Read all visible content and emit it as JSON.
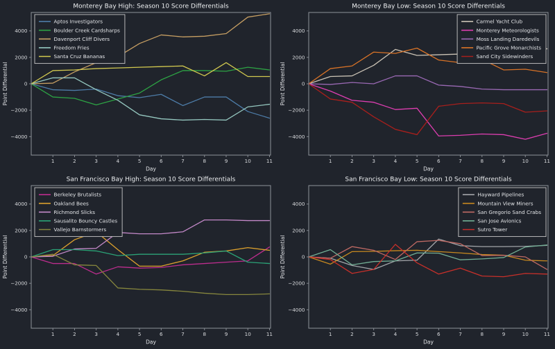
{
  "page": {
    "background": "#20242c",
    "spine_color": "#8e939a",
    "title_color": "#eceef0",
    "tick_label_color": "#d8dadd",
    "axis_label_color": "#e4e6e9",
    "legend_border_color": "#c9c9c9",
    "legend_fill": "#20242c"
  },
  "chart_data": [
    {
      "id": "monterey-bay-high",
      "type": "line",
      "title": "Monterey Bay High: Season 10 Score Differentials",
      "xlabel": "Day",
      "ylabel": "Point Differential",
      "x": [
        0,
        1,
        2,
        3,
        4,
        5,
        6,
        7,
        8,
        9,
        10,
        11
      ],
      "xticks": [
        1,
        2,
        3,
        4,
        5,
        6,
        7,
        8,
        9,
        10,
        11
      ],
      "yticks": [
        -4000,
        -2000,
        0,
        2000,
        4000
      ],
      "xlim": [
        0,
        11.05
      ],
      "ylim": [
        -5400,
        5400
      ],
      "grid": false,
      "legend_position": "top-left",
      "series": [
        {
          "name": "Aptos Investigators",
          "color": "#4d7ca8",
          "values": [
            0,
            -450,
            -500,
            -400,
            -900,
            -1050,
            -800,
            -1650,
            -1000,
            -1000,
            -2100,
            -2600
          ]
        },
        {
          "name": "Boulder Creek Cardsharps",
          "color": "#2da344",
          "values": [
            0,
            -1000,
            -1100,
            -1600,
            -1150,
            -700,
            300,
            1000,
            1000,
            950,
            1250,
            1050
          ]
        },
        {
          "name": "Davenport Cliff Divers",
          "color": "#c79f63",
          "values": [
            0,
            50,
            900,
            1600,
            2050,
            3050,
            3700,
            3550,
            3600,
            3800,
            5050,
            5300
          ]
        },
        {
          "name": "Freedom Fries",
          "color": "#95c8c0",
          "values": [
            0,
            450,
            450,
            -450,
            -1250,
            -2350,
            -2650,
            -2750,
            -2700,
            -2750,
            -1750,
            -1550
          ]
        },
        {
          "name": "Santa Cruz Bananas",
          "color": "#d2c94f",
          "values": [
            0,
            1000,
            1050,
            1150,
            1200,
            1250,
            1300,
            1350,
            600,
            1600,
            550,
            550
          ]
        }
      ]
    },
    {
      "id": "monterey-bay-low",
      "type": "line",
      "title": "Monterey Bay Low: Season 10 Score Differentials",
      "xlabel": "Day",
      "ylabel": "Point Differential",
      "x": [
        0,
        1,
        2,
        3,
        4,
        5,
        6,
        7,
        8,
        9,
        10,
        11
      ],
      "xticks": [
        1,
        2,
        3,
        4,
        5,
        6,
        7,
        8,
        9,
        10,
        11
      ],
      "yticks": [
        -4000,
        -2000,
        0,
        2000,
        4000
      ],
      "xlim": [
        0,
        11.05
      ],
      "ylim": [
        -5400,
        5400
      ],
      "grid": false,
      "legend_position": "top-right",
      "series": [
        {
          "name": "Carmel Yacht Club",
          "color": "#cbc3b5",
          "values": [
            0,
            550,
            600,
            1400,
            2600,
            2150,
            2200,
            2250,
            2300,
            2100,
            2500,
            2650
          ]
        },
        {
          "name": "Monterey Meteorologists",
          "color": "#de3eb1",
          "values": [
            0,
            -550,
            -1250,
            -1400,
            -1950,
            -1850,
            -3950,
            -3900,
            -3800,
            -3850,
            -4200,
            -3750
          ]
        },
        {
          "name": "Moss Landing Daredevils",
          "color": "#9a69b4",
          "values": [
            0,
            -50,
            100,
            0,
            600,
            600,
            -100,
            -200,
            -400,
            -450,
            -450,
            -450
          ]
        },
        {
          "name": "Pacific Grove Monarchists",
          "color": "#d97327",
          "values": [
            0,
            1150,
            1350,
            2400,
            2300,
            2700,
            1800,
            1600,
            1850,
            1050,
            1100,
            850
          ]
        },
        {
          "name": "Sand City Sidewinders",
          "color": "#a81f1c",
          "values": [
            0,
            -1150,
            -1400,
            -2500,
            -3450,
            -3850,
            -1700,
            -1500,
            -1450,
            -1500,
            -2150,
            -2050
          ]
        }
      ]
    },
    {
      "id": "san-francisco-bay-high",
      "type": "line",
      "title": "San Francisco Bay High: Season 10 Score Differentials",
      "xlabel": "Day",
      "ylabel": "Point Differential",
      "x": [
        0,
        1,
        2,
        3,
        4,
        5,
        6,
        7,
        8,
        9,
        10,
        11
      ],
      "xticks": [
        1,
        2,
        3,
        4,
        5,
        6,
        7,
        8,
        9,
        10,
        11
      ],
      "yticks": [
        -4000,
        -2000,
        0,
        2000,
        4000
      ],
      "xlim": [
        0,
        11.05
      ],
      "ylim": [
        -5400,
        5400
      ],
      "grid": false,
      "legend_position": "top-left",
      "series": [
        {
          "name": "Berkeley Brutalists",
          "color": "#bd2d8e",
          "values": [
            0,
            -500,
            -500,
            -1300,
            -750,
            -850,
            -800,
            -600,
            -500,
            -400,
            -300,
            750
          ]
        },
        {
          "name": "Oakland Bees",
          "color": "#dda12d",
          "values": [
            0,
            100,
            1300,
            1900,
            550,
            -700,
            -700,
            -300,
            350,
            450,
            700,
            500
          ]
        },
        {
          "name": "Richmond Slicks",
          "color": "#c489c9",
          "values": [
            0,
            50,
            600,
            650,
            1850,
            1750,
            1750,
            1900,
            2800,
            2800,
            2750,
            2750
          ]
        },
        {
          "name": "Sausalito Bouncy Castles",
          "color": "#2ba377",
          "values": [
            0,
            550,
            550,
            450,
            100,
            200,
            200,
            200,
            300,
            450,
            -400,
            -500
          ]
        },
        {
          "name": "Vallejo Barnstormers",
          "color": "#87873d",
          "values": [
            0,
            200,
            -600,
            -650,
            -2350,
            -2450,
            -2500,
            -2600,
            -2750,
            -2850,
            -2850,
            -2800
          ]
        }
      ]
    },
    {
      "id": "san-francisco-bay-low",
      "type": "line",
      "title": "San Francisco Bay Low: Season 10 Score Differentials",
      "xlabel": "Day",
      "ylabel": "Point Differential",
      "x": [
        0,
        1,
        2,
        3,
        4,
        5,
        6,
        7,
        8,
        9,
        10,
        11
      ],
      "xticks": [
        1,
        2,
        3,
        4,
        5,
        6,
        7,
        8,
        9,
        10,
        11
      ],
      "yticks": [
        -4000,
        -2000,
        0,
        2000,
        4000
      ],
      "xlim": [
        0,
        11.05
      ],
      "ylim": [
        -5400,
        5400
      ],
      "grid": false,
      "legend_position": "top-right",
      "series": [
        {
          "name": "Hayward Pipelines",
          "color": "#a2a5a9",
          "values": [
            0,
            -100,
            -650,
            -950,
            -300,
            -250,
            1350,
            850,
            780,
            780,
            800,
            870
          ]
        },
        {
          "name": "Mountain View Miners",
          "color": "#c8891f",
          "values": [
            0,
            -550,
            400,
            420,
            470,
            500,
            400,
            300,
            180,
            130,
            -250,
            -300
          ]
        },
        {
          "name": "San Gregorio Sand Crabs",
          "color": "#c06a64",
          "values": [
            0,
            -100,
            780,
            500,
            -200,
            1150,
            1250,
            1000,
            100,
            120,
            0,
            -950
          ]
        },
        {
          "name": "San Jose Avionics",
          "color": "#72af95",
          "values": [
            0,
            550,
            -600,
            -350,
            -300,
            300,
            280,
            -220,
            -150,
            -50,
            750,
            900
          ]
        },
        {
          "name": "Sutro Tower",
          "color": "#c9302a",
          "values": [
            0,
            -200,
            -1250,
            -950,
            950,
            -450,
            -1300,
            -850,
            -1450,
            -1500,
            -1250,
            -1300
          ]
        }
      ]
    }
  ]
}
